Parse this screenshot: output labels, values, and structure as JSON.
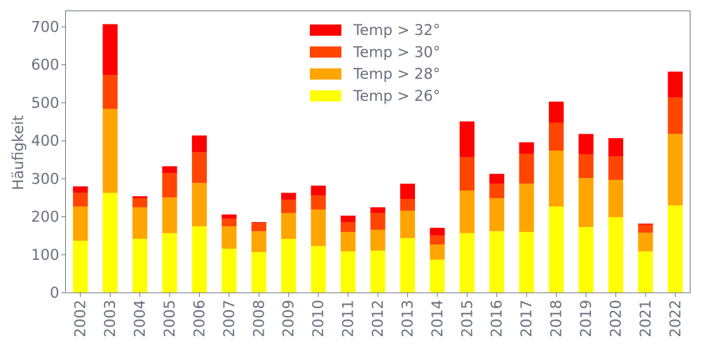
{
  "chart_data": {
    "type": "bar",
    "stacked": true,
    "title": "",
    "xlabel": "",
    "ylabel": "Häufigkeit",
    "ylim": [
      0,
      742
    ],
    "yticks": [
      0,
      100,
      200,
      300,
      400,
      500,
      600,
      700
    ],
    "grid": false,
    "legend_position": "top-center",
    "categories": [
      "2002",
      "2003",
      "2004",
      "2005",
      "2006",
      "2007",
      "2008",
      "2009",
      "2010",
      "2011",
      "2012",
      "2013",
      "2014",
      "2015",
      "2016",
      "2017",
      "2018",
      "2019",
      "2020",
      "2021",
      "2022"
    ],
    "series": [
      {
        "name": "Temp > 26°",
        "color": "#ffff00",
        "values": [
          137,
          263,
          142,
          157,
          175,
          116,
          107,
          142,
          123,
          109,
          111,
          144,
          87,
          157,
          162,
          160,
          227,
          173,
          199,
          109,
          230
        ]
      },
      {
        "name": "Temp > 28°",
        "color": "#ffa500",
        "values": [
          90,
          221,
          83,
          94,
          114,
          59,
          55,
          68,
          96,
          51,
          55,
          72,
          40,
          112,
          87,
          127,
          147,
          129,
          98,
          49,
          188
        ]
      },
      {
        "name": "Temp > 30°",
        "color": "#ff4500",
        "values": [
          36,
          89,
          24,
          64,
          81,
          20,
          22,
          35,
          37,
          26,
          44,
          31,
          24,
          88,
          38,
          79,
          74,
          63,
          62,
          21,
          96
        ]
      },
      {
        "name": "Temp > 32°",
        "color": "#ff0000",
        "values": [
          17,
          134,
          5,
          18,
          44,
          11,
          2,
          18,
          26,
          17,
          15,
          40,
          20,
          94,
          26,
          30,
          55,
          53,
          48,
          3,
          68
        ]
      }
    ],
    "axis_color": "#6b7080"
  }
}
